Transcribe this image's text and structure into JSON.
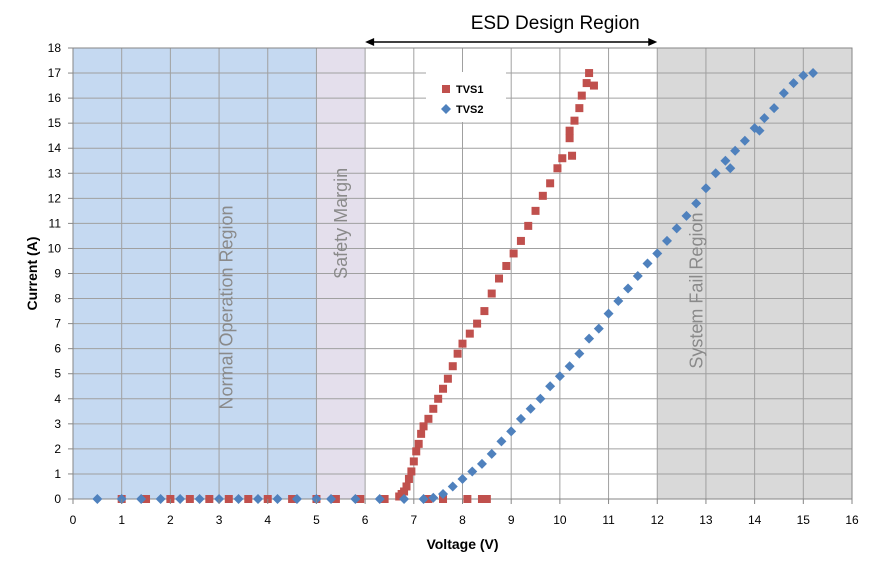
{
  "chart_data": {
    "type": "scatter",
    "title": "ESD Design Region",
    "xlabel": "Voltage (V)",
    "ylabel": "Current (A)",
    "xlim": [
      0,
      16
    ],
    "ylim": [
      0,
      18
    ],
    "x_ticks": [
      0,
      1,
      2,
      3,
      4,
      5,
      6,
      7,
      8,
      9,
      10,
      11,
      12,
      13,
      14,
      15,
      16
    ],
    "y_ticks": [
      0,
      1,
      2,
      3,
      4,
      5,
      6,
      7,
      8,
      9,
      10,
      11,
      12,
      13,
      14,
      15,
      16,
      17,
      18
    ],
    "grid": true,
    "legend_position": "top-center",
    "annotation_arrow": {
      "from_x": 6,
      "to_x": 12
    },
    "regions": [
      {
        "label": "Normal Operation Region",
        "x_start": 0,
        "x_end": 5,
        "color": "#c5d9f1"
      },
      {
        "label": "Safety Margin",
        "x_start": 5,
        "x_end": 6,
        "color": "#e4dfec"
      },
      {
        "label": "System Fail Region",
        "x_start": 12,
        "x_end": 16,
        "color": "#d9d9d9"
      }
    ],
    "series": [
      {
        "name": "TVS1",
        "marker": "square",
        "color": "#c0504d",
        "points": [
          [
            1.0,
            0
          ],
          [
            1.5,
            0
          ],
          [
            2.0,
            0
          ],
          [
            2.4,
            0
          ],
          [
            2.8,
            0
          ],
          [
            3.2,
            0
          ],
          [
            3.6,
            0
          ],
          [
            4.0,
            0
          ],
          [
            4.5,
            0
          ],
          [
            5.0,
            0
          ],
          [
            5.4,
            0
          ],
          [
            5.9,
            0
          ],
          [
            6.4,
            0
          ],
          [
            6.7,
            0.1
          ],
          [
            6.75,
            0.2
          ],
          [
            6.8,
            0.3
          ],
          [
            6.85,
            0.5
          ],
          [
            6.9,
            0.8
          ],
          [
            6.95,
            1.1
          ],
          [
            7.0,
            1.5
          ],
          [
            7.05,
            1.9
          ],
          [
            7.1,
            2.2
          ],
          [
            7.15,
            2.6
          ],
          [
            7.2,
            2.9
          ],
          [
            7.3,
            3.2
          ],
          [
            7.4,
            3.6
          ],
          [
            7.5,
            4.0
          ],
          [
            7.6,
            4.4
          ],
          [
            7.7,
            4.8
          ],
          [
            7.8,
            5.3
          ],
          [
            7.9,
            5.8
          ],
          [
            8.0,
            6.2
          ],
          [
            8.15,
            6.6
          ],
          [
            8.3,
            7.0
          ],
          [
            8.45,
            7.5
          ],
          [
            8.6,
            8.2
          ],
          [
            8.75,
            8.8
          ],
          [
            8.9,
            9.3
          ],
          [
            9.05,
            9.8
          ],
          [
            9.2,
            10.3
          ],
          [
            9.35,
            10.9
          ],
          [
            9.5,
            11.5
          ],
          [
            9.65,
            12.1
          ],
          [
            9.8,
            12.6
          ],
          [
            9.95,
            13.2
          ],
          [
            10.05,
            13.6
          ],
          [
            10.2,
            14.4
          ],
          [
            10.3,
            15.1
          ],
          [
            10.4,
            15.6
          ],
          [
            10.45,
            16.1
          ],
          [
            10.55,
            16.6
          ],
          [
            10.6,
            17.0
          ],
          [
            10.7,
            16.5
          ],
          [
            10.2,
            14.7
          ],
          [
            10.25,
            13.7
          ],
          [
            8.1,
            0
          ],
          [
            8.4,
            0
          ],
          [
            8.5,
            0
          ],
          [
            7.6,
            0
          ],
          [
            7.3,
            0
          ]
        ]
      },
      {
        "name": "TVS2",
        "marker": "diamond",
        "color": "#4f81bd",
        "points": [
          [
            0.5,
            0
          ],
          [
            1.0,
            0
          ],
          [
            1.4,
            0
          ],
          [
            1.8,
            0
          ],
          [
            2.2,
            0
          ],
          [
            2.6,
            0
          ],
          [
            3.0,
            0
          ],
          [
            3.4,
            0
          ],
          [
            3.8,
            0
          ],
          [
            4.2,
            0
          ],
          [
            4.6,
            0
          ],
          [
            5.0,
            0
          ],
          [
            5.3,
            0
          ],
          [
            5.8,
            0
          ],
          [
            6.3,
            0
          ],
          [
            6.8,
            0
          ],
          [
            7.2,
            0
          ],
          [
            7.4,
            0.05
          ],
          [
            7.6,
            0.2
          ],
          [
            7.8,
            0.5
          ],
          [
            8.0,
            0.8
          ],
          [
            8.2,
            1.1
          ],
          [
            8.4,
            1.4
          ],
          [
            8.6,
            1.8
          ],
          [
            8.8,
            2.3
          ],
          [
            9.0,
            2.7
          ],
          [
            9.2,
            3.2
          ],
          [
            9.4,
            3.6
          ],
          [
            9.6,
            4.0
          ],
          [
            9.8,
            4.5
          ],
          [
            10.0,
            4.9
          ],
          [
            10.2,
            5.3
          ],
          [
            10.4,
            5.8
          ],
          [
            10.6,
            6.4
          ],
          [
            10.8,
            6.8
          ],
          [
            11.0,
            7.4
          ],
          [
            11.2,
            7.9
          ],
          [
            11.4,
            8.4
          ],
          [
            11.6,
            8.9
          ],
          [
            11.8,
            9.4
          ],
          [
            12.0,
            9.8
          ],
          [
            12.2,
            10.3
          ],
          [
            12.4,
            10.8
          ],
          [
            12.6,
            11.3
          ],
          [
            12.8,
            11.8
          ],
          [
            13.0,
            12.4
          ],
          [
            13.2,
            13.0
          ],
          [
            13.4,
            13.5
          ],
          [
            13.6,
            13.9
          ],
          [
            13.8,
            14.3
          ],
          [
            14.0,
            14.8
          ],
          [
            14.2,
            15.2
          ],
          [
            14.4,
            15.6
          ],
          [
            14.6,
            16.2
          ],
          [
            14.8,
            16.6
          ],
          [
            15.0,
            16.9
          ],
          [
            15.2,
            17.0
          ],
          [
            13.5,
            13.2
          ],
          [
            14.1,
            14.7
          ]
        ]
      }
    ]
  }
}
